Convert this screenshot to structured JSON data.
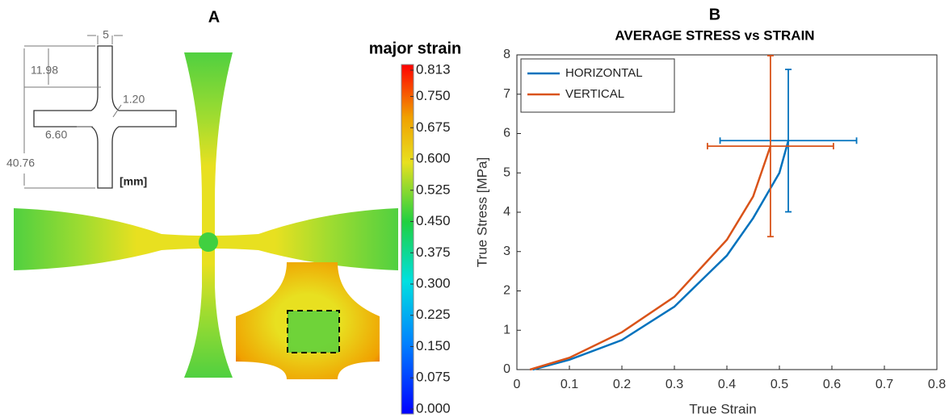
{
  "panel_a": {
    "label": "A",
    "dimensions": [
      "5",
      "11.98",
      "1.20",
      "6.60",
      "40.76"
    ],
    "unit": "[mm]",
    "colorbar": {
      "title": "major strain",
      "clim": [
        0,
        0.813
      ],
      "ticks": [
        {
          "value": 0,
          "label": "0.000"
        },
        {
          "value": 0.075,
          "label": "0.075"
        },
        {
          "value": 0.15,
          "label": "0.150"
        },
        {
          "value": 0.225,
          "label": "0.225"
        },
        {
          "value": 0.3,
          "label": "0.300"
        },
        {
          "value": 0.375,
          "label": "0.375"
        },
        {
          "value": 0.45,
          "label": "0.450"
        },
        {
          "value": 0.525,
          "label": "0.525"
        },
        {
          "value": 0.6,
          "label": "0.600"
        },
        {
          "value": 0.675,
          "label": "0.675"
        },
        {
          "value": 0.75,
          "label": "0.750"
        },
        0.813
      ]
    }
  },
  "chart_data": {
    "type": "line",
    "panel_label": "B",
    "title": "AVERAGE STRESS vs STRAIN",
    "x_label": "True Strain",
    "y_label": "True Stress [MPa]",
    "xlim": [
      0,
      0.8
    ],
    "xticks": [
      0,
      0.1,
      0.2,
      0.3,
      0.4,
      0.5,
      0.6,
      0.7,
      0.8
    ],
    "ylim": [
      0,
      8
    ],
    "yticks": [
      0,
      1,
      2,
      3,
      4,
      5,
      6,
      7,
      8
    ],
    "legend": "upper-left",
    "series": [
      {
        "name": "HORIZONTAL",
        "color": "#0072bd",
        "x": [
          0.03,
          0.1,
          0.2,
          0.3,
          0.4,
          0.45,
          0.5,
          0.517
        ],
        "values": [
          0,
          0.25,
          0.75,
          1.6,
          2.9,
          3.85,
          5.0,
          5.82
        ],
        "error": {
          "x": 0.517,
          "y": 5.82,
          "xerr": 0.13,
          "yerr": 1.81
        }
      },
      {
        "name": "VERTICAL",
        "color": "#d95319",
        "x": [
          0.025,
          0.1,
          0.2,
          0.3,
          0.4,
          0.45,
          0.483
        ],
        "values": [
          0,
          0.3,
          0.95,
          1.85,
          3.3,
          4.4,
          5.68
        ],
        "error": {
          "x": 0.483,
          "y": 5.68,
          "xerr": 0.12,
          "yerr": 2.3
        }
      }
    ]
  }
}
